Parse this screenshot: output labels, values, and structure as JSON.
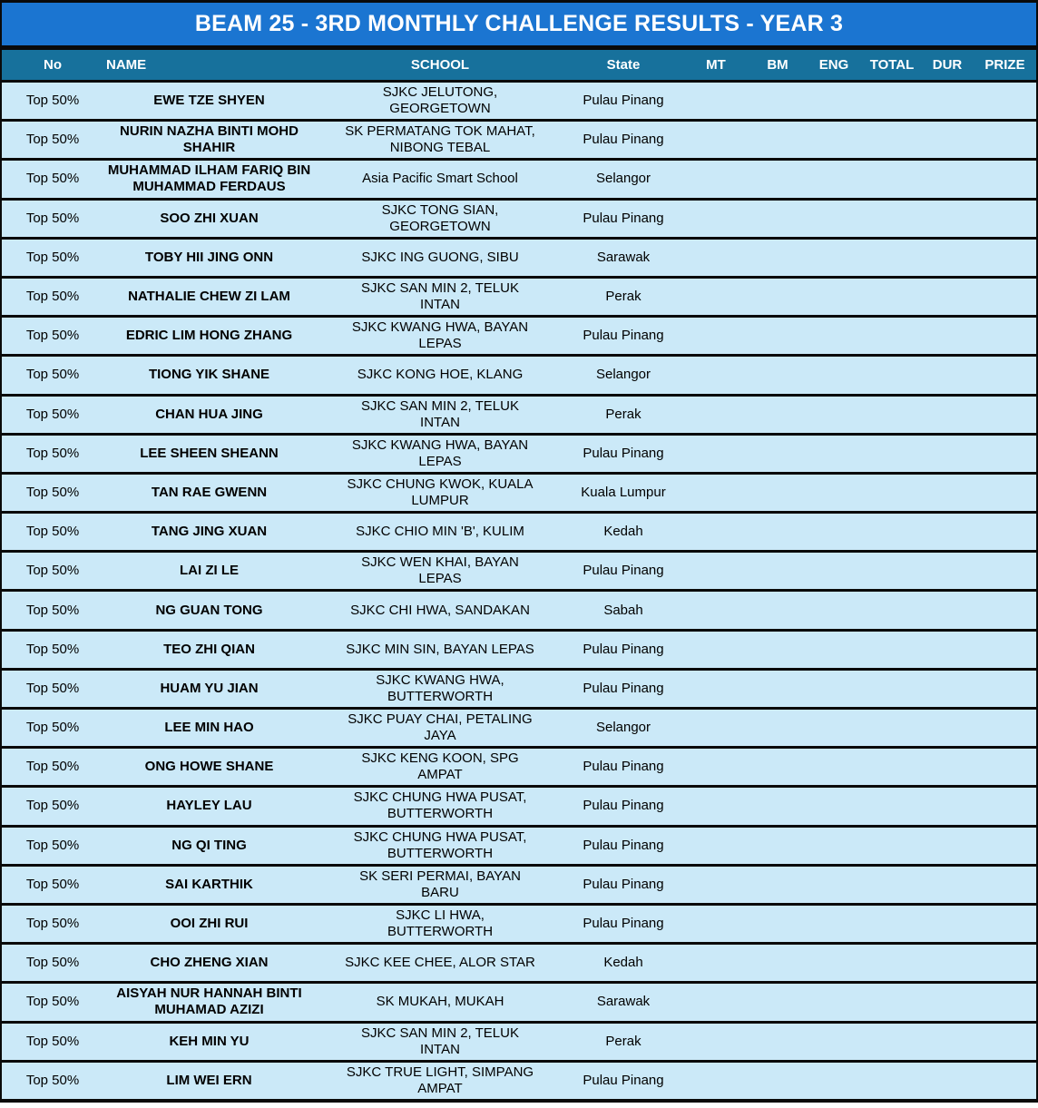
{
  "title": "BEAM 25 - 3RD MONTHLY CHALLENGE RESULTS - YEAR 3",
  "colors": {
    "title_bar": "#1b75d1",
    "header_bar": "#17719c",
    "row_bg": "#cbe9f8",
    "border": "#0a0a0a",
    "header_text": "#ffffff",
    "body_text": "#000000"
  },
  "table": {
    "columns": [
      {
        "key": "no",
        "label": "No"
      },
      {
        "key": "name",
        "label": "NAME"
      },
      {
        "key": "school",
        "label": "SCHOOL"
      },
      {
        "key": "state",
        "label": "State"
      },
      {
        "key": "mt",
        "label": "MT"
      },
      {
        "key": "bm",
        "label": "BM"
      },
      {
        "key": "eng",
        "label": "ENG"
      },
      {
        "key": "total",
        "label": "TOTAL"
      },
      {
        "key": "dur",
        "label": "DUR"
      },
      {
        "key": "prize",
        "label": "PRIZE"
      }
    ],
    "rows": [
      {
        "no": "Top 50%",
        "name": "EWE TZE SHYEN",
        "school": "SJKC JELUTONG,\nGEORGETOWN",
        "state": "Pulau Pinang",
        "mt": "",
        "bm": "",
        "eng": "",
        "total": "",
        "dur": "",
        "prize": ""
      },
      {
        "no": "Top 50%",
        "name": "NURIN NAZHA BINTI MOHD\nSHAHIR",
        "school": "SK PERMATANG TOK MAHAT,\nNIBONG TEBAL",
        "state": "Pulau Pinang",
        "mt": "",
        "bm": "",
        "eng": "",
        "total": "",
        "dur": "",
        "prize": ""
      },
      {
        "no": "Top 50%",
        "name": "MUHAMMAD ILHAM FARIQ BIN\nMUHAMMAD FERDAUS",
        "school": "Asia Pacific Smart School",
        "state": "Selangor",
        "mt": "",
        "bm": "",
        "eng": "",
        "total": "",
        "dur": "",
        "prize": ""
      },
      {
        "no": "Top 50%",
        "name": "SOO ZHI XUAN",
        "school": "SJKC TONG SIAN,\nGEORGETOWN",
        "state": "Pulau Pinang",
        "mt": "",
        "bm": "",
        "eng": "",
        "total": "",
        "dur": "",
        "prize": ""
      },
      {
        "no": "Top 50%",
        "name": "TOBY HII JING ONN",
        "school": "SJKC ING GUONG, SIBU",
        "state": "Sarawak",
        "mt": "",
        "bm": "",
        "eng": "",
        "total": "",
        "dur": "",
        "prize": ""
      },
      {
        "no": "Top 50%",
        "name": "NATHALIE CHEW ZI LAM",
        "school": "SJKC SAN MIN 2, TELUK\nINTAN",
        "state": "Perak",
        "mt": "",
        "bm": "",
        "eng": "",
        "total": "",
        "dur": "",
        "prize": ""
      },
      {
        "no": "Top 50%",
        "name": "EDRIC LIM HONG ZHANG",
        "school": "SJKC KWANG HWA, BAYAN\nLEPAS",
        "state": "Pulau Pinang",
        "mt": "",
        "bm": "",
        "eng": "",
        "total": "",
        "dur": "",
        "prize": ""
      },
      {
        "no": "Top 50%",
        "name": "TIONG YIK SHANE",
        "school": "SJKC KONG HOE, KLANG",
        "state": "Selangor",
        "mt": "",
        "bm": "",
        "eng": "",
        "total": "",
        "dur": "",
        "prize": ""
      },
      {
        "no": "Top 50%",
        "name": "CHAN HUA JING",
        "school": "SJKC SAN MIN 2, TELUK\nINTAN",
        "state": "Perak",
        "mt": "",
        "bm": "",
        "eng": "",
        "total": "",
        "dur": "",
        "prize": ""
      },
      {
        "no": "Top 50%",
        "name": "LEE SHEEN SHEANN",
        "school": "SJKC KWANG HWA, BAYAN\nLEPAS",
        "state": "Pulau Pinang",
        "mt": "",
        "bm": "",
        "eng": "",
        "total": "",
        "dur": "",
        "prize": ""
      },
      {
        "no": "Top 50%",
        "name": "TAN RAE GWENN",
        "school": "SJKC CHUNG KWOK, KUALA\nLUMPUR",
        "state": "Kuala Lumpur",
        "mt": "",
        "bm": "",
        "eng": "",
        "total": "",
        "dur": "",
        "prize": ""
      },
      {
        "no": "Top 50%",
        "name": "TANG JING XUAN",
        "school": "SJKC CHIO MIN 'B', KULIM",
        "state": "Kedah",
        "mt": "",
        "bm": "",
        "eng": "",
        "total": "",
        "dur": "",
        "prize": ""
      },
      {
        "no": "Top 50%",
        "name": "LAI ZI LE",
        "school": "SJKC WEN KHAI, BAYAN\nLEPAS",
        "state": "Pulau Pinang",
        "mt": "",
        "bm": "",
        "eng": "",
        "total": "",
        "dur": "",
        "prize": ""
      },
      {
        "no": "Top 50%",
        "name": "NG GUAN TONG",
        "school": "SJKC CHI HWA, SANDAKAN",
        "state": "Sabah",
        "mt": "",
        "bm": "",
        "eng": "",
        "total": "",
        "dur": "",
        "prize": ""
      },
      {
        "no": "Top 50%",
        "name": "TEO ZHI QIAN",
        "school": "SJKC MIN SIN, BAYAN LEPAS",
        "state": "Pulau Pinang",
        "mt": "",
        "bm": "",
        "eng": "",
        "total": "",
        "dur": "",
        "prize": ""
      },
      {
        "no": "Top 50%",
        "name": "HUAM YU JIAN",
        "school": "SJKC KWANG HWA,\nBUTTERWORTH",
        "state": "Pulau Pinang",
        "mt": "",
        "bm": "",
        "eng": "",
        "total": "",
        "dur": "",
        "prize": ""
      },
      {
        "no": "Top 50%",
        "name": "LEE MIN HAO",
        "school": "SJKC PUAY CHAI, PETALING\nJAYA",
        "state": "Selangor",
        "mt": "",
        "bm": "",
        "eng": "",
        "total": "",
        "dur": "",
        "prize": ""
      },
      {
        "no": "Top 50%",
        "name": "ONG HOWE SHANE",
        "school": "SJKC KENG KOON, SPG\nAMPAT",
        "state": "Pulau Pinang",
        "mt": "",
        "bm": "",
        "eng": "",
        "total": "",
        "dur": "",
        "prize": ""
      },
      {
        "no": "Top 50%",
        "name": "HAYLEY LAU",
        "school": "SJKC CHUNG HWA PUSAT,\nBUTTERWORTH",
        "state": "Pulau Pinang",
        "mt": "",
        "bm": "",
        "eng": "",
        "total": "",
        "dur": "",
        "prize": ""
      },
      {
        "no": "Top 50%",
        "name": "NG QI TING",
        "school": "SJKC CHUNG HWA PUSAT,\nBUTTERWORTH",
        "state": "Pulau Pinang",
        "mt": "",
        "bm": "",
        "eng": "",
        "total": "",
        "dur": "",
        "prize": ""
      },
      {
        "no": "Top 50%",
        "name": "SAI KARTHIK",
        "school": "SK SERI PERMAI, BAYAN\nBARU",
        "state": "Pulau Pinang",
        "mt": "",
        "bm": "",
        "eng": "",
        "total": "",
        "dur": "",
        "prize": ""
      },
      {
        "no": "Top 50%",
        "name": "OOI ZHI RUI",
        "school": "SJKC LI HWA,\nBUTTERWORTH",
        "state": "Pulau Pinang",
        "mt": "",
        "bm": "",
        "eng": "",
        "total": "",
        "dur": "",
        "prize": ""
      },
      {
        "no": "Top 50%",
        "name": "CHO ZHENG XIAN",
        "school": "SJKC KEE CHEE, ALOR STAR",
        "state": "Kedah",
        "mt": "",
        "bm": "",
        "eng": "",
        "total": "",
        "dur": "",
        "prize": ""
      },
      {
        "no": "Top 50%",
        "name": "AISYAH NUR HANNAH BINTI\nMUHAMAD AZIZI",
        "school": "SK MUKAH, MUKAH",
        "state": "Sarawak",
        "mt": "",
        "bm": "",
        "eng": "",
        "total": "",
        "dur": "",
        "prize": ""
      },
      {
        "no": "Top 50%",
        "name": "KEH MIN YU",
        "school": "SJKC SAN MIN 2, TELUK\nINTAN",
        "state": "Perak",
        "mt": "",
        "bm": "",
        "eng": "",
        "total": "",
        "dur": "",
        "prize": ""
      },
      {
        "no": "Top 50%",
        "name": "LIM WEI ERN",
        "school": "SJKC TRUE LIGHT, SIMPANG\nAMPAT",
        "state": "Pulau Pinang",
        "mt": "",
        "bm": "",
        "eng": "",
        "total": "",
        "dur": "",
        "prize": ""
      }
    ]
  }
}
